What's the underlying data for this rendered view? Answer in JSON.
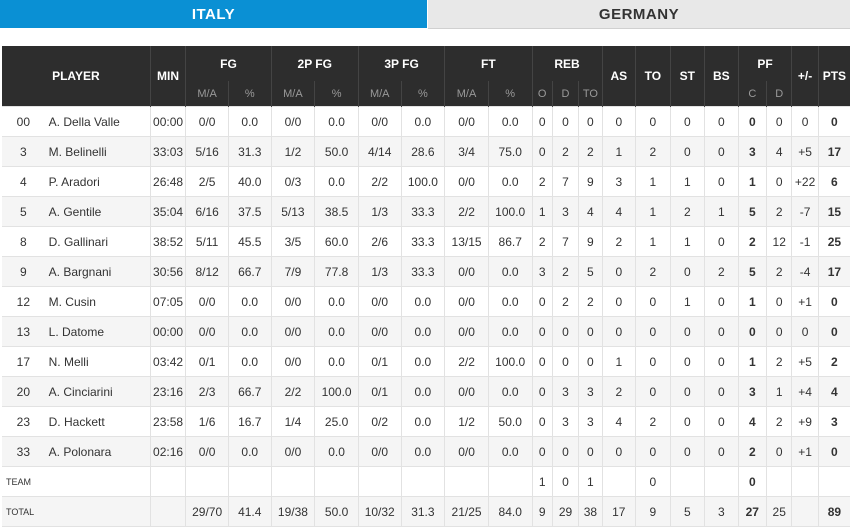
{
  "tabs": {
    "home": "ITALY",
    "away": "GERMANY"
  },
  "header": {
    "player": "PLAYER",
    "min": "MIN",
    "fg": "FG",
    "fg2": "2P FG",
    "fg3": "3P FG",
    "ft": "FT",
    "reb": "REB",
    "as": "AS",
    "to": "TO",
    "st": "ST",
    "bs": "BS",
    "pf": "PF",
    "pm": "+/-",
    "pts": "PTS",
    "ma": "M/A",
    "pct": "%",
    "o": "O",
    "d": "D",
    "tot": "TO",
    "c": "C",
    "pfd": "D"
  },
  "players": [
    [
      "00",
      "A. Della Valle",
      "00:00",
      "0/0",
      "0.0",
      "0/0",
      "0.0",
      "0/0",
      "0.0",
      "0/0",
      "0.0",
      "0",
      "0",
      "0",
      "0",
      "0",
      "0",
      "0",
      "0",
      "0",
      "0",
      "0"
    ],
    [
      "3",
      "M. Belinelli",
      "33:03",
      "5/16",
      "31.3",
      "1/2",
      "50.0",
      "4/14",
      "28.6",
      "3/4",
      "75.0",
      "0",
      "2",
      "2",
      "1",
      "2",
      "0",
      "0",
      "3",
      "4",
      "+5",
      "17"
    ],
    [
      "4",
      "P. Aradori",
      "26:48",
      "2/5",
      "40.0",
      "0/3",
      "0.0",
      "2/2",
      "100.0",
      "0/0",
      "0.0",
      "2",
      "7",
      "9",
      "3",
      "1",
      "1",
      "0",
      "1",
      "0",
      "+22",
      "6"
    ],
    [
      "5",
      "A. Gentile",
      "35:04",
      "6/16",
      "37.5",
      "5/13",
      "38.5",
      "1/3",
      "33.3",
      "2/2",
      "100.0",
      "1",
      "3",
      "4",
      "4",
      "1",
      "2",
      "1",
      "5",
      "2",
      "-7",
      "15"
    ],
    [
      "8",
      "D. Gallinari",
      "38:52",
      "5/11",
      "45.5",
      "3/5",
      "60.0",
      "2/6",
      "33.3",
      "13/15",
      "86.7",
      "2",
      "7",
      "9",
      "2",
      "1",
      "1",
      "0",
      "2",
      "12",
      "-1",
      "25"
    ],
    [
      "9",
      "A. Bargnani",
      "30:56",
      "8/12",
      "66.7",
      "7/9",
      "77.8",
      "1/3",
      "33.3",
      "0/0",
      "0.0",
      "3",
      "2",
      "5",
      "0",
      "2",
      "0",
      "2",
      "5",
      "2",
      "-4",
      "17"
    ],
    [
      "12",
      "M. Cusin",
      "07:05",
      "0/0",
      "0.0",
      "0/0",
      "0.0",
      "0/0",
      "0.0",
      "0/0",
      "0.0",
      "0",
      "2",
      "2",
      "0",
      "0",
      "1",
      "0",
      "1",
      "0",
      "+1",
      "0"
    ],
    [
      "13",
      "L. Datome",
      "00:00",
      "0/0",
      "0.0",
      "0/0",
      "0.0",
      "0/0",
      "0.0",
      "0/0",
      "0.0",
      "0",
      "0",
      "0",
      "0",
      "0",
      "0",
      "0",
      "0",
      "0",
      "0",
      "0"
    ],
    [
      "17",
      "N. Melli",
      "03:42",
      "0/1",
      "0.0",
      "0/0",
      "0.0",
      "0/1",
      "0.0",
      "2/2",
      "100.0",
      "0",
      "0",
      "0",
      "1",
      "0",
      "0",
      "0",
      "1",
      "2",
      "+5",
      "2"
    ],
    [
      "20",
      "A. Cinciarini",
      "23:16",
      "2/3",
      "66.7",
      "2/2",
      "100.0",
      "0/1",
      "0.0",
      "0/0",
      "0.0",
      "0",
      "3",
      "3",
      "2",
      "0",
      "0",
      "0",
      "3",
      "1",
      "+4",
      "4"
    ],
    [
      "23",
      "D. Hackett",
      "23:58",
      "1/6",
      "16.7",
      "1/4",
      "25.0",
      "0/2",
      "0.0",
      "1/2",
      "50.0",
      "0",
      "3",
      "3",
      "4",
      "2",
      "0",
      "0",
      "4",
      "2",
      "+9",
      "3"
    ],
    [
      "33",
      "A. Polonara",
      "02:16",
      "0/0",
      "0.0",
      "0/0",
      "0.0",
      "0/0",
      "0.0",
      "0/0",
      "0.0",
      "0",
      "0",
      "0",
      "0",
      "0",
      "0",
      "0",
      "2",
      "0",
      "+1",
      "0"
    ]
  ],
  "team_row": {
    "label": "TEAM",
    "o": "1",
    "d": "0",
    "tot": "1",
    "to": "0",
    "c": "0"
  },
  "total_row": [
    "TOTAL",
    "",
    "29/70",
    "41.4",
    "19/38",
    "50.0",
    "10/32",
    "31.3",
    "21/25",
    "84.0",
    "9",
    "29",
    "38",
    "17",
    "9",
    "5",
    "3",
    "27",
    "25",
    "",
    "89"
  ]
}
